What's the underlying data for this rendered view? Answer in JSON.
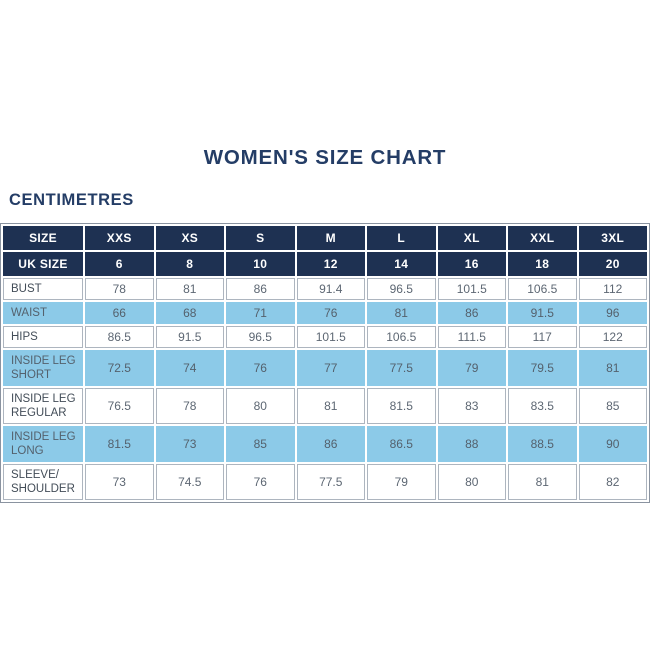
{
  "page": {
    "title": "WOMEN'S SIZE CHART",
    "subtitle": "CENTIMETRES"
  },
  "colors": {
    "header_navy": "#1e3152",
    "row_highlight_blue": "#8ccae8",
    "title_text": "#243d66",
    "value_text": "#5d6773",
    "grid_border": "#adb5bf",
    "background": "#ffffff"
  },
  "chart_data": {
    "type": "table",
    "title": "WOMEN'S SIZE CHART",
    "units_label": "CENTIMETRES",
    "columns": [
      "SIZE",
      "XXS",
      "XS",
      "S",
      "M",
      "L",
      "XL",
      "XXL",
      "3XL"
    ],
    "uk_sizes": {
      "label": "UK SIZE",
      "values": [
        "6",
        "8",
        "10",
        "12",
        "14",
        "16",
        "18",
        "20"
      ]
    },
    "measurements": [
      {
        "label": "BUST",
        "shaded": false,
        "values": [
          "78",
          "81",
          "86",
          "91.4",
          "96.5",
          "101.5",
          "106.5",
          "112"
        ]
      },
      {
        "label": "WAIST",
        "shaded": true,
        "values": [
          "66",
          "68",
          "71",
          "76",
          "81",
          "86",
          "91.5",
          "96"
        ]
      },
      {
        "label": "HIPS",
        "shaded": false,
        "values": [
          "86.5",
          "91.5",
          "96.5",
          "101.5",
          "106.5",
          "111.5",
          "117",
          "122"
        ]
      },
      {
        "label": "INSIDE LEG SHORT",
        "shaded": true,
        "values": [
          "72.5",
          "74",
          "76",
          "77",
          "77.5",
          "79",
          "79.5",
          "81"
        ]
      },
      {
        "label": "INSIDE LEG REGULAR",
        "shaded": false,
        "values": [
          "76.5",
          "78",
          "80",
          "81",
          "81.5",
          "83",
          "83.5",
          "85"
        ]
      },
      {
        "label": "INSIDE LEG LONG",
        "shaded": true,
        "values": [
          "81.5",
          "73",
          "85",
          "86",
          "86.5",
          "88",
          "88.5",
          "90"
        ]
      },
      {
        "label": "SLEEVE/ SHOULDER",
        "shaded": false,
        "values": [
          "73",
          "74.5",
          "76",
          "77.5",
          "79",
          "80",
          "81",
          "82"
        ]
      }
    ]
  }
}
